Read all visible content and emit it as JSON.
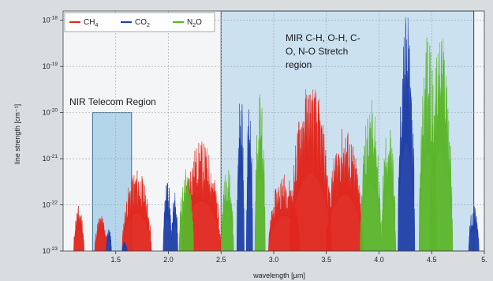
{
  "chart_data": {
    "type": "area",
    "xlabel": "wavelength [µm]",
    "ylabel": "line strength [cm⁻¹]",
    "xlim": [
      1.0,
      5.0
    ],
    "x_ticks": [
      {
        "value": 1.5,
        "label": "1.5"
      },
      {
        "value": 2.0,
        "label": "2.0"
      },
      {
        "value": 2.5,
        "label": "2.5"
      },
      {
        "value": 3.0,
        "label": "3.0"
      },
      {
        "value": 3.5,
        "label": "3.5"
      },
      {
        "value": 4.0,
        "label": "4.0"
      },
      {
        "value": 4.5,
        "label": "4.5"
      },
      {
        "value": 5.0,
        "label": "5."
      }
    ],
    "y_scale": "log",
    "ylim_exponents": [
      -23,
      -17.8
    ],
    "y_ticks": [
      {
        "exponent": -18,
        "base": "10",
        "exp": "-18"
      },
      {
        "exponent": -19,
        "base": "10",
        "exp": "-19"
      },
      {
        "exponent": -20,
        "base": "10",
        "exp": "-20"
      },
      {
        "exponent": -21,
        "base": "10",
        "exp": "-21"
      },
      {
        "exponent": -22,
        "base": "10",
        "exp": "-22"
      },
      {
        "exponent": -23,
        "base": "10",
        "exp": "-23"
      }
    ],
    "grid": true,
    "legend_position": "top-left",
    "series": [
      {
        "name": "CH4",
        "label": "CH",
        "sub": "4",
        "color": "#e0261c",
        "bands": [
          {
            "x0": 1.1,
            "x1": 1.2,
            "peak_exp": -22.0
          },
          {
            "x0": 1.3,
            "x1": 1.42,
            "peak_exp": -22.2
          },
          {
            "x0": 1.56,
            "x1": 1.84,
            "peak_exp": -21.2
          },
          {
            "x0": 2.12,
            "x1": 2.5,
            "peak_exp": -20.6
          },
          {
            "x0": 2.95,
            "x1": 3.25,
            "peak_exp": -21.3
          },
          {
            "x0": 3.15,
            "x1": 3.55,
            "peak_exp": -19.3
          },
          {
            "x0": 3.5,
            "x1": 3.85,
            "peak_exp": -20.3
          }
        ]
      },
      {
        "name": "CO2",
        "label": "CO",
        "sub": "2",
        "color": "#1f3fa8",
        "bands": [
          {
            "x0": 1.41,
            "x1": 1.46,
            "peak_exp": -22.5
          },
          {
            "x0": 1.56,
            "x1": 1.61,
            "peak_exp": -22.8
          },
          {
            "x0": 1.95,
            "x1": 2.03,
            "peak_exp": -21.4
          },
          {
            "x0": 2.03,
            "x1": 2.09,
            "peak_exp": -21.7
          },
          {
            "x0": 2.65,
            "x1": 2.72,
            "peak_exp": -19.3
          },
          {
            "x0": 2.74,
            "x1": 2.8,
            "peak_exp": -19.6
          },
          {
            "x0": 4.18,
            "x1": 4.34,
            "peak_exp": -17.8
          },
          {
            "x0": 4.85,
            "x1": 4.95,
            "peak_exp": -22.0
          }
        ]
      },
      {
        "name": "N2O",
        "label": "N",
        "sub": "2",
        "tail": "O",
        "color": "#5bb52a",
        "bands": [
          {
            "x0": 2.1,
            "x1": 2.24,
            "peak_exp": -21.2
          },
          {
            "x0": 2.5,
            "x1": 2.62,
            "peak_exp": -21.1
          },
          {
            "x0": 2.82,
            "x1": 2.92,
            "peak_exp": -19.5
          },
          {
            "x0": 3.82,
            "x1": 4.02,
            "peak_exp": -19.7
          },
          {
            "x0": 4.02,
            "x1": 4.16,
            "peak_exp": -20.2
          },
          {
            "x0": 4.38,
            "x1": 4.55,
            "peak_exp": -18.3
          },
          {
            "x0": 4.48,
            "x1": 4.7,
            "peak_exp": -18.2
          }
        ]
      }
    ],
    "regions": [
      {
        "name": "NIR Telecom Region",
        "x0": 1.28,
        "x1": 1.65,
        "top_exp": -20.0
      },
      {
        "name": "MIR C-H, O-H, C-O, N-O Stretch region",
        "x0": 2.5,
        "x1": 4.9,
        "top_exp": -17.8
      }
    ],
    "annotations": {
      "nir_label": "NIR Telecom Region",
      "mir_label_lines": [
        "MIR C-H, O-H, C-",
        "O, N-O Stretch",
        "region"
      ]
    }
  }
}
